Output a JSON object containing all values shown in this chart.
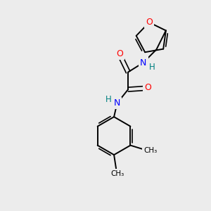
{
  "background_color": "#ececec",
  "bond_color": "#000000",
  "atom_colors": {
    "O": "#ff0000",
    "N": "#0000ff",
    "H": "#008080",
    "C": "#000000"
  },
  "figsize": [
    3.0,
    3.0
  ],
  "dpi": 100,
  "xlim": [
    0,
    10
  ],
  "ylim": [
    0,
    10
  ]
}
